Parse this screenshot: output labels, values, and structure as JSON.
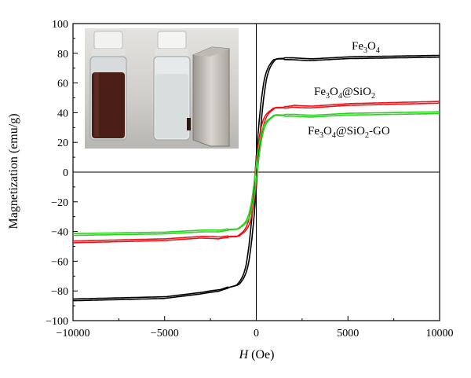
{
  "chart_data": {
    "type": "line",
    "xlabel_italic": "H",
    "xlabel_rest": " (Oe)",
    "ylabel": "Magnetization (emu/g)",
    "xlim": [
      -10000,
      10000
    ],
    "ylim": [
      -100,
      100
    ],
    "xticks": [
      -10000,
      -5000,
      0,
      5000,
      10000
    ],
    "yticks": [
      -100,
      -80,
      -60,
      -40,
      -20,
      0,
      20,
      40,
      60,
      80,
      100
    ],
    "grid": false,
    "zero_lines": true,
    "inset": "photo of two vials, left with dark brown Fe3O4 suspension, right clear with particles attracted to a magnet",
    "series": [
      {
        "name": "Fe3O4",
        "color": "#000000",
        "ms": 79,
        "scale": 450,
        "coercivity": 60,
        "points_x": [
          -10000,
          -5000,
          -2000,
          -1000,
          -500,
          0,
          500,
          1000,
          2000,
          5000,
          10000
        ],
        "points_y": [
          -86,
          -84.5,
          -80,
          -73,
          -58,
          0,
          58,
          73,
          75,
          77,
          78
        ]
      },
      {
        "name": "Fe3O4@SiO2",
        "color": "#e8141a",
        "ms": 47,
        "scale": 380,
        "coercivity": 60,
        "points_x": [
          -10000,
          -5000,
          -2000,
          -1000,
          0,
          1000,
          2000,
          5000,
          10000
        ],
        "points_y": [
          -47,
          -45.5,
          -43,
          -37,
          0,
          37,
          43,
          45.5,
          47
        ]
      },
      {
        "name": "Fe3O4@SiO2-GO",
        "color": "#2bd11e",
        "ms": 41,
        "scale": 380,
        "coercivity": 50,
        "points_x": [
          -10000,
          -5000,
          -2000,
          -1000,
          0,
          1000,
          2000,
          5000,
          10000
        ],
        "points_y": [
          -42,
          -41,
          -39,
          -34,
          0,
          34,
          37,
          39,
          40
        ]
      }
    ]
  }
}
